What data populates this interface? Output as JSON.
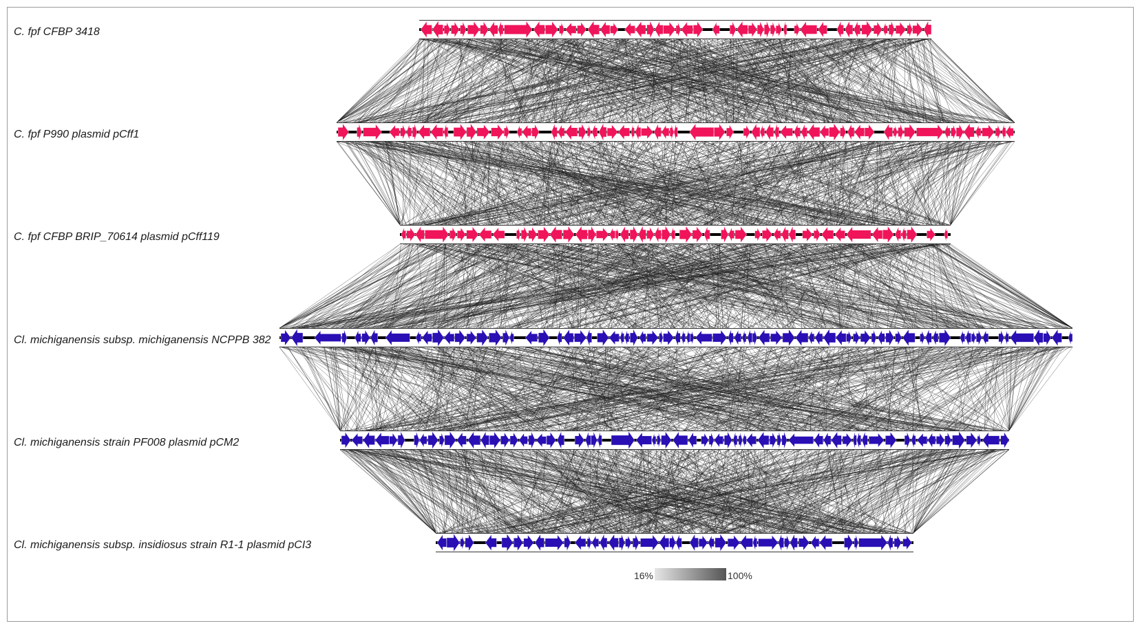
{
  "tracks": [
    {
      "label": "C. fpf CFBP 3418",
      "color": "#f0145a"
    },
    {
      "label": "C. fpf P990 plasmid pCff1",
      "color": "#f0145a"
    },
    {
      "label": "C. fpf CFBP BRIP_70614 plasmid pCff119",
      "color": "#f0145a"
    },
    {
      "label": "Cl. michiganensis subsp. michiganensis NCPPB 382",
      "color": "#2a0fb4"
    },
    {
      "label": "Cl. michiganensis strain PF008 plasmid pCM2",
      "color": "#2a0fb4"
    },
    {
      "label": "Cl. michiganensis subsp. insidiosus strain R1-1 plasmid pCI3",
      "color": "#2a0fb4"
    }
  ],
  "legend": {
    "min_label": "16%",
    "max_label": "100%",
    "min_color": "#e6e6e6",
    "max_color": "#555555"
  },
  "colors": {
    "backbone": "#000000",
    "link": "#1e1e1e"
  }
}
